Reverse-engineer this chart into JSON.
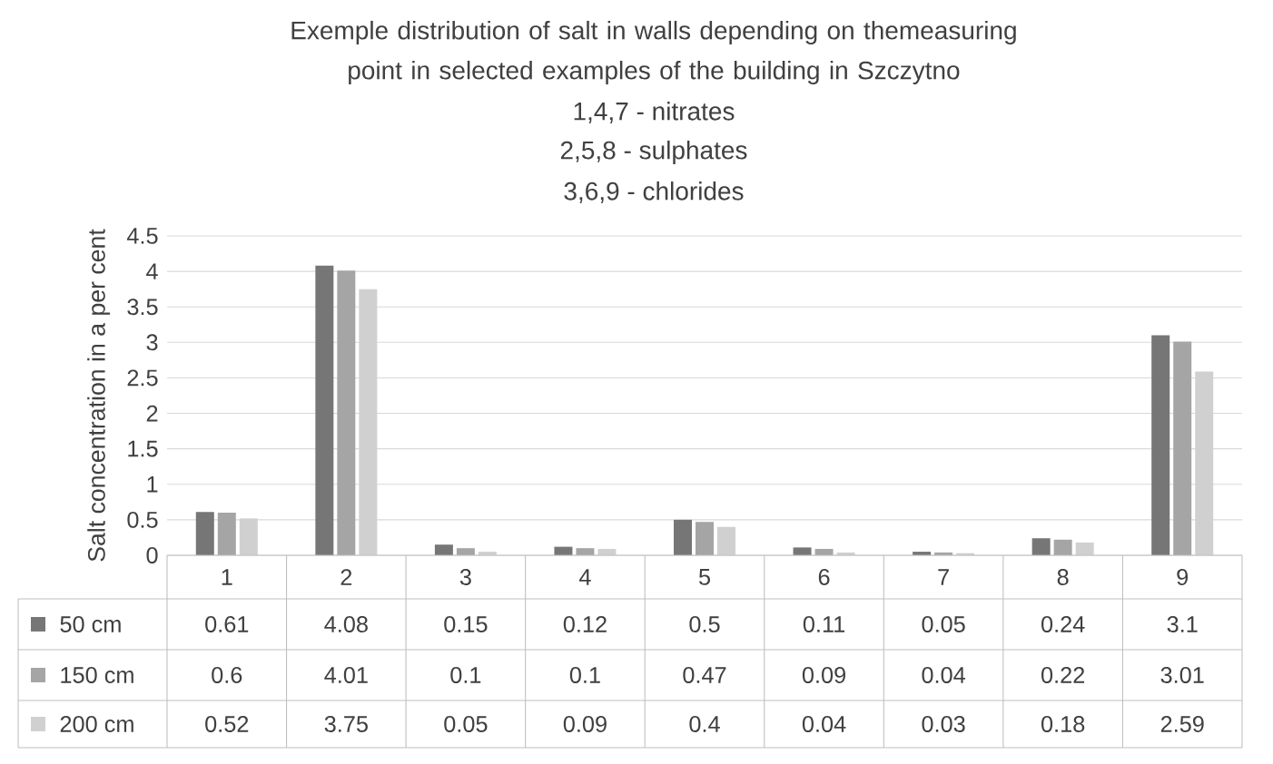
{
  "chart_data": {
    "type": "bar",
    "title": "Exemple distribution of salt in walls depending on themeasuring point in selected examples of the building in Szczytno",
    "annotations": [
      "1,4,7 - nitrates",
      "2,5,8 - sulphates",
      "3,6,9 - chlorides"
    ],
    "ylabel": "Salt concentration in a per cent",
    "categories": [
      "1",
      "2",
      "3",
      "4",
      "5",
      "6",
      "7",
      "8",
      "9"
    ],
    "series": [
      {
        "name": "50 cm",
        "color": "#767676",
        "values": [
          0.61,
          4.08,
          0.15,
          0.12,
          0.5,
          0.11,
          0.05,
          0.24,
          3.1
        ]
      },
      {
        "name": "150 cm",
        "color": "#a5a5a5",
        "values": [
          0.6,
          4.01,
          0.1,
          0.1,
          0.47,
          0.09,
          0.04,
          0.22,
          3.01
        ]
      },
      {
        "name": "200 cm",
        "color": "#d0d0d0",
        "values": [
          0.52,
          3.75,
          0.05,
          0.09,
          0.4,
          0.04,
          0.03,
          0.18,
          2.59
        ]
      }
    ],
    "ylim": [
      0,
      4.5
    ],
    "yticks": [
      0,
      0.5,
      1,
      1.5,
      2,
      2.5,
      3,
      3.5,
      4,
      4.5
    ],
    "grid": "y",
    "legend": "bottom",
    "data_labels": true
  }
}
